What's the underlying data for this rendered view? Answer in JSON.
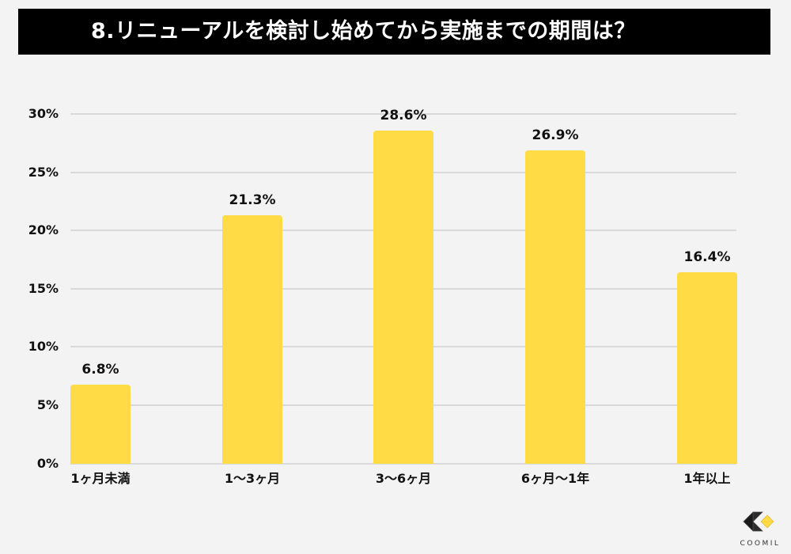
{
  "header": {
    "title": "8.リニューアルを検討し始めてから実施までの期間は？"
  },
  "chart_data": {
    "type": "bar",
    "title": "8.リニューアルを検討し始めてから実施までの期間は？",
    "categories": [
      "1ヶ月未満",
      "1〜3ヶ月",
      "3〜6ヶ月",
      "6ヶ月〜1年",
      "1年以上"
    ],
    "values": [
      6.8,
      21.3,
      28.6,
      26.9,
      16.4
    ],
    "value_labels": [
      "6.8%",
      "21.3%",
      "28.6%",
      "26.9%",
      "16.4%"
    ],
    "xlabel": "",
    "ylabel": "",
    "ylim": [
      0,
      30
    ],
    "yticks": [
      "0%",
      "5%",
      "10%",
      "15%",
      "20%",
      "25%",
      "30%"
    ],
    "grid": true,
    "legend": null,
    "bar_color": "#ffdb45"
  },
  "branding": {
    "logo_text": "COOMIL",
    "logo_accent": "#ffdb45",
    "logo_dark": "#222222"
  },
  "colors": {
    "background": "#f3f3f3",
    "header_bg": "#000000",
    "header_text": "#ffffff",
    "gridline": "#d9d9d9"
  }
}
